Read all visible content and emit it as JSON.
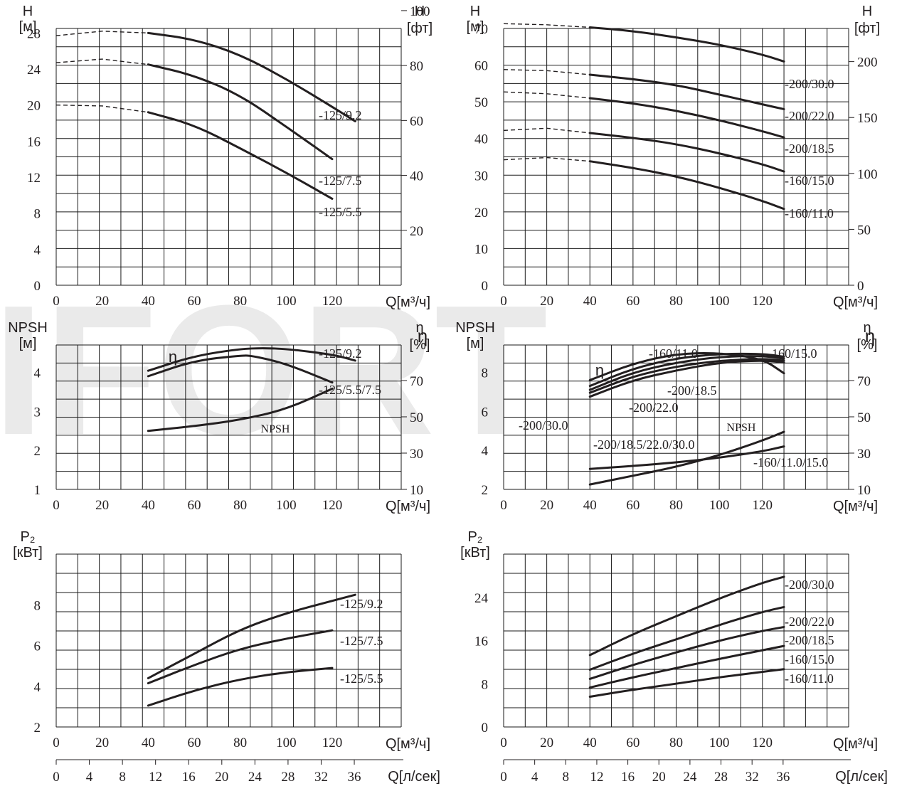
{
  "watermark": "IFORT",
  "chart_data": [
    {
      "id": "head-125",
      "type": "line",
      "x_unit": "Q[м³/ч]",
      "ylabel": "H [м]",
      "y2label": "H [фт]",
      "x_ticks": [
        0,
        20,
        40,
        60,
        80,
        100,
        120
      ],
      "y_ticks": [
        0,
        4,
        8,
        12,
        16,
        20,
        24,
        28
      ],
      "y2_ticks": [
        20,
        40,
        60,
        80,
        100
      ],
      "xlim": [
        0,
        150
      ],
      "ylim": [
        0,
        28.5
      ],
      "series": [
        {
          "name": "-125/9.2",
          "x": [
            40,
            60,
            80,
            100,
            120,
            130
          ],
          "y": [
            28,
            27.3,
            25.6,
            22.9,
            19.8,
            18.2
          ],
          "dashed_x": [
            0,
            20,
            40
          ],
          "dashed_y": [
            27.7,
            28.2,
            28
          ]
        },
        {
          "name": "-125/7.5",
          "x": [
            40,
            60,
            80,
            100,
            120
          ],
          "y": [
            24.5,
            23.3,
            21.1,
            17.6,
            14
          ],
          "dashed_x": [
            0,
            20,
            40
          ],
          "dashed_y": [
            24.7,
            25.1,
            24.5
          ]
        },
        {
          "name": "-125/5.5",
          "x": [
            40,
            60,
            80,
            100,
            120
          ],
          "y": [
            19.2,
            17.8,
            15.2,
            12.5,
            9.6
          ],
          "dashed_x": [
            0,
            20,
            40
          ],
          "dashed_y": [
            20,
            19.9,
            19.2
          ]
        }
      ]
    },
    {
      "id": "head-160-200",
      "type": "line",
      "x_unit": "Q[м³/ч]",
      "ylabel": "H [м]",
      "y2label": "H [фт]",
      "x_ticks": [
        0,
        20,
        40,
        60,
        80,
        100,
        120
      ],
      "y_ticks": [
        0,
        10,
        20,
        30,
        40,
        50,
        60,
        70
      ],
      "y2_ticks": [
        0,
        50,
        100,
        150,
        200
      ],
      "xlim": [
        0,
        160
      ],
      "ylim": [
        0,
        70
      ],
      "series": [
        {
          "name": "-200/30.0",
          "x": [
            40,
            60,
            80,
            100,
            120,
            130
          ],
          "y": [
            70.3,
            69.3,
            67.6,
            65.6,
            62.9,
            61
          ],
          "dashed_x": [
            0,
            20,
            40
          ],
          "dashed_y": [
            71.3,
            71,
            70.3
          ]
        },
        {
          "name": "-200/22.0",
          "x": [
            40,
            60,
            80,
            100,
            120,
            130
          ],
          "y": [
            57.4,
            56.2,
            54.6,
            52,
            49.3,
            48
          ],
          "dashed_x": [
            0,
            20,
            40
          ],
          "dashed_y": [
            58.8,
            58.5,
            57.4
          ]
        },
        {
          "name": "-200/18.5",
          "x": [
            40,
            60,
            80,
            100,
            120,
            130
          ],
          "y": [
            51,
            49.6,
            47.6,
            45,
            42,
            40.3
          ],
          "dashed_x": [
            0,
            20,
            40
          ],
          "dashed_y": [
            52.7,
            52.2,
            51
          ]
        },
        {
          "name": "-160/15.0",
          "x": [
            40,
            60,
            80,
            100,
            120,
            130
          ],
          "y": [
            41.5,
            40.2,
            38.5,
            36,
            33,
            31
          ],
          "dashed_x": [
            0,
            20,
            40
          ],
          "dashed_y": [
            42.2,
            42.8,
            41.5
          ]
        },
        {
          "name": "-160/11.0",
          "x": [
            40,
            60,
            80,
            100,
            120,
            130
          ],
          "y": [
            33.8,
            32,
            29.7,
            26.6,
            23,
            20.8
          ],
          "dashed_x": [
            0,
            20,
            40
          ],
          "dashed_y": [
            34.2,
            34.8,
            33.8
          ]
        }
      ]
    },
    {
      "id": "npsh-eff-125",
      "type": "line",
      "x_unit": "Q[м³/ч]",
      "ylabel": "NPSH [м]",
      "y2label": "η [%]",
      "eta_symbol": "η",
      "npsh_text": "NPSH",
      "x_ticks": [
        0,
        20,
        40,
        60,
        80,
        100,
        120
      ],
      "y_ticks": [
        1,
        2,
        3,
        4
      ],
      "y2_ticks": [
        10,
        30,
        50,
        70
      ],
      "xlim": [
        0,
        150
      ],
      "ylim": [
        1,
        4.7
      ],
      "series": [
        {
          "name": "-125/9.2",
          "x": [
            40,
            60,
            80,
            90,
            100,
            120,
            130
          ],
          "y": [
            4.04,
            4.42,
            4.6,
            4.62,
            4.6,
            4.46,
            4.3
          ]
        },
        {
          "name": "-125/5.5/7.5",
          "x": [
            40,
            60,
            80,
            85,
            100,
            120
          ],
          "y": [
            3.9,
            4.3,
            4.43,
            4.43,
            4.22,
            3.74
          ]
        },
        {
          "name": "NPSH",
          "x": [
            40,
            60,
            80,
            100,
            120
          ],
          "y": [
            2.5,
            2.62,
            2.78,
            3.05,
            3.58
          ]
        }
      ]
    },
    {
      "id": "npsh-eff-160-200",
      "type": "line",
      "x_unit": "Q[м³/ч]",
      "ylabel": "NPSH [м]",
      "y2label": "η [%]",
      "eta_symbol": "η",
      "npsh_text": "NPSH",
      "x_ticks": [
        0,
        20,
        40,
        60,
        80,
        100,
        120
      ],
      "y_ticks": [
        2,
        4,
        6,
        8
      ],
      "y2_ticks": [
        10,
        30,
        50,
        70
      ],
      "xlim": [
        0,
        160
      ],
      "ylim": [
        2,
        9.4
      ],
      "series": [
        {
          "name": "-160/11.0",
          "x": [
            40,
            60,
            80,
            100,
            120,
            130
          ],
          "y": [
            7.6,
            8.45,
            8.95,
            9.0,
            8.7,
            7.95
          ]
        },
        {
          "name": "-160/15.0",
          "x": [
            40,
            60,
            80,
            100,
            120,
            130
          ],
          "y": [
            7.3,
            8.2,
            8.72,
            8.95,
            8.95,
            8.8
          ]
        },
        {
          "name": "-200/18.5",
          "x": [
            40,
            60,
            80,
            100,
            120,
            130
          ],
          "y": [
            7.1,
            8.0,
            8.5,
            8.8,
            8.85,
            8.7
          ]
        },
        {
          "name": "-200/22.0",
          "x": [
            40,
            60,
            80,
            100,
            120,
            130
          ],
          "y": [
            6.95,
            7.8,
            8.3,
            8.6,
            8.7,
            8.6
          ]
        },
        {
          "name": "-200/30.0",
          "x": [
            40,
            60,
            80,
            100,
            120,
            130
          ],
          "y": [
            6.75,
            7.6,
            8.1,
            8.5,
            8.62,
            8.5
          ]
        },
        {
          "name": "-200/18.5/22.0/30.0",
          "x": [
            40,
            60,
            80,
            100,
            120,
            130
          ],
          "y": [
            2.25,
            2.7,
            3.15,
            3.75,
            4.5,
            4.95
          ]
        },
        {
          "name": "-160/11.0/15.0",
          "x": [
            40,
            60,
            80,
            100,
            120,
            130
          ],
          "y": [
            3.05,
            3.2,
            3.38,
            3.62,
            3.95,
            4.2
          ]
        }
      ]
    },
    {
      "id": "power-125",
      "type": "line",
      "x_unit": "Q[м³/ч]",
      "x2_unit": "Q[л/сек]",
      "ylabel": "P₂ [кВт]",
      "x_ticks": [
        0,
        20,
        40,
        60,
        80,
        100,
        120
      ],
      "x2_ticks": [
        0,
        4,
        8,
        12,
        16,
        20,
        24,
        28,
        32,
        36
      ],
      "y_ticks": [
        2,
        4,
        6,
        8
      ],
      "xlim": [
        0,
        150
      ],
      "ylim": [
        2,
        10.5
      ],
      "series": [
        {
          "name": "-125/9.2",
          "x": [
            40,
            60,
            80,
            100,
            120,
            130
          ],
          "y": [
            4.4,
            5.6,
            6.8,
            7.6,
            8.2,
            8.5
          ]
        },
        {
          "name": "-125/7.5",
          "x": [
            40,
            60,
            80,
            100,
            120
          ],
          "y": [
            4.15,
            5.05,
            5.85,
            6.35,
            6.75
          ]
        },
        {
          "name": "-125/5.5",
          "x": [
            40,
            60,
            80,
            100,
            120
          ],
          "y": [
            3.05,
            3.8,
            4.35,
            4.7,
            4.9
          ]
        }
      ]
    },
    {
      "id": "power-160-200",
      "type": "line",
      "x_unit": "Q[м³/ч]",
      "x2_unit": "Q[л/сек]",
      "ylabel": "P₂ [кВт]",
      "x_ticks": [
        0,
        20,
        40,
        60,
        80,
        100,
        120
      ],
      "x2_ticks": [
        0,
        4,
        8,
        12,
        16,
        20,
        24,
        28,
        32,
        36
      ],
      "y_ticks": [
        0,
        8,
        16,
        24
      ],
      "xlim": [
        0,
        160
      ],
      "ylim": [
        0,
        32
      ],
      "series": [
        {
          "name": "-200/30.0",
          "x": [
            40,
            60,
            80,
            100,
            120,
            130
          ],
          "y": [
            13.3,
            17.2,
            20.5,
            23.8,
            26.7,
            27.8
          ]
        },
        {
          "name": "-200/22.0",
          "x": [
            40,
            60,
            80,
            100,
            120,
            130
          ],
          "y": [
            10.6,
            13.6,
            16.2,
            18.9,
            21.3,
            22.2
          ]
        },
        {
          "name": "-200/18.5",
          "x": [
            40,
            60,
            80,
            100,
            120,
            130
          ],
          "y": [
            8.9,
            11.5,
            13.8,
            16,
            17.8,
            18.5
          ]
        },
        {
          "name": "-160/15.0",
          "x": [
            40,
            60,
            80,
            100,
            120,
            130
          ],
          "y": [
            7.3,
            9.2,
            10.9,
            12.6,
            14.2,
            15
          ]
        },
        {
          "name": "-160/11.0",
          "x": [
            40,
            60,
            80,
            100,
            120,
            130
          ],
          "y": [
            5.6,
            6.9,
            8.0,
            9.2,
            10.2,
            10.7
          ]
        }
      ]
    }
  ]
}
